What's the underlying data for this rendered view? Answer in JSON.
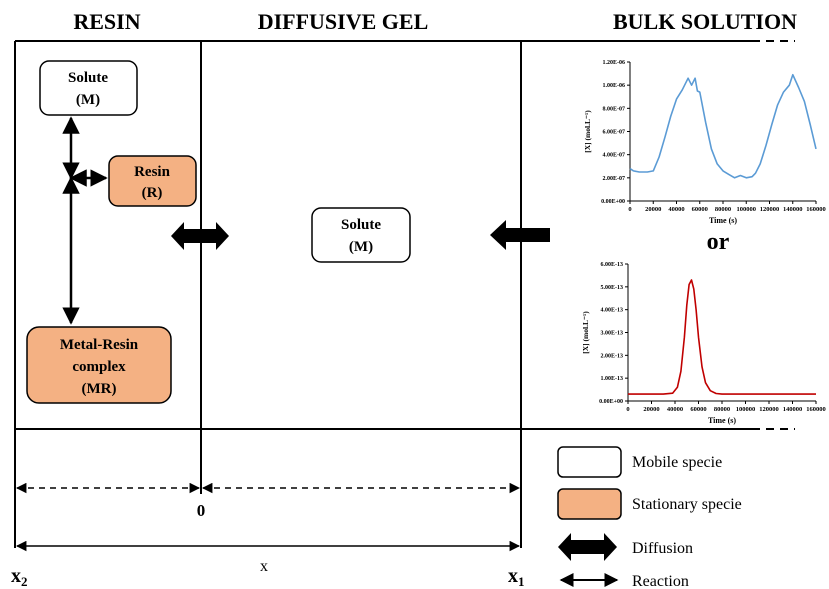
{
  "headers": {
    "resin": "RESIN",
    "gel": "DIFFUSIVE GEL",
    "bulk": "BULK SOLUTION"
  },
  "resin": {
    "solute": {
      "line1": "Solute",
      "line2": "(M)"
    },
    "resin_box": {
      "line1": "Resin",
      "line2": "(R)"
    },
    "complex": {
      "line1": "Metal-Resin",
      "line2": "complex",
      "line3": "(MR)"
    }
  },
  "gel": {
    "solute": {
      "line1": "Solute",
      "line2": "(M)"
    }
  },
  "axis": {
    "zero": "0",
    "x": "x",
    "x2": "x",
    "x2_sub": "2",
    "x1": "x",
    "x1_sub": "1"
  },
  "or_text": "or",
  "legend": {
    "mobile": "Mobile specie",
    "stationary": "Stationary specie",
    "diffusion": "Diffusion",
    "reaction": "Reaction"
  },
  "colors": {
    "stationary_fill": "#f4b183",
    "line_series": "#5b9bd5",
    "peak_series": "#c00000"
  },
  "chart_data": [
    {
      "type": "line",
      "title": "",
      "xlabel": "Time (s)",
      "ylabel": "[X] (mol.L⁻¹)",
      "xlim": [
        0,
        160000
      ],
      "ylim": [
        0,
        1.2e-06
      ],
      "xticks": [
        "0",
        "20000",
        "40000",
        "60000",
        "80000",
        "100000",
        "120000",
        "140000",
        "160000"
      ],
      "yticks": [
        "0.00E+00",
        "2.00E-07",
        "4.00E-07",
        "6.00E-07",
        "8.00E-07",
        "1.00E-06",
        "1.20E-06"
      ],
      "x": [
        0,
        3000,
        8000,
        15000,
        20000,
        25000,
        30000,
        35000,
        40000,
        45000,
        50000,
        53000,
        56000,
        58000,
        60000,
        65000,
        70000,
        75000,
        80000,
        85000,
        90000,
        95000,
        100000,
        105000,
        108000,
        112000,
        117000,
        122000,
        127000,
        132000,
        137000,
        140000,
        145000,
        150000,
        155000,
        160000
      ],
      "series": [
        {
          "values": [
            2.8e-07,
            2.6e-07,
            2.5e-07,
            2.5e-07,
            2.6e-07,
            3.8e-07,
            5.5e-07,
            7.3e-07,
            8.8e-07,
            9.6e-07,
            1.06e-06,
            1e-06,
            1.06e-06,
            9.5e-07,
            9.4e-07,
            6.8e-07,
            4.5e-07,
            3.2e-07,
            2.6e-07,
            2.3e-07,
            2e-07,
            2.2e-07,
            2e-07,
            2.1e-07,
            2.4e-07,
            3.2e-07,
            4.8e-07,
            6.6e-07,
            8.3e-07,
            9.4e-07,
            1e-06,
            1.09e-06,
            9.8e-07,
            8.6e-07,
            6.6e-07,
            4.5e-07
          ]
        }
      ]
    },
    {
      "type": "line",
      "title": "",
      "xlabel": "Time (s)",
      "ylabel": "[X] (mol.L⁻¹)",
      "xlim": [
        0,
        160000
      ],
      "ylim": [
        0,
        6e-13
      ],
      "xticks": [
        "0",
        "20000",
        "40000",
        "60000",
        "80000",
        "100000",
        "120000",
        "140000",
        "160000"
      ],
      "yticks": [
        "0.00E+00",
        "1.00E-13",
        "2.00E-13",
        "3.00E-13",
        "4.00E-13",
        "5.00E-13",
        "6.00E-13"
      ],
      "x": [
        0,
        30000,
        38000,
        42000,
        45000,
        48000,
        50000,
        52000,
        54000,
        56000,
        58000,
        60000,
        63000,
        66000,
        70000,
        75000,
        80000,
        120000,
        160000
      ],
      "series": [
        {
          "values": [
            3e-14,
            3e-14,
            3.4e-14,
            6e-14,
            1.3e-13,
            2.8e-13,
            4.2e-13,
            5.1e-13,
            5.3e-13,
            4.9e-13,
            4e-13,
            2.8e-13,
            1.5e-13,
            8e-14,
            4.5e-14,
            3.3e-14,
            3e-14,
            3e-14,
            3e-14
          ]
        }
      ]
    }
  ]
}
